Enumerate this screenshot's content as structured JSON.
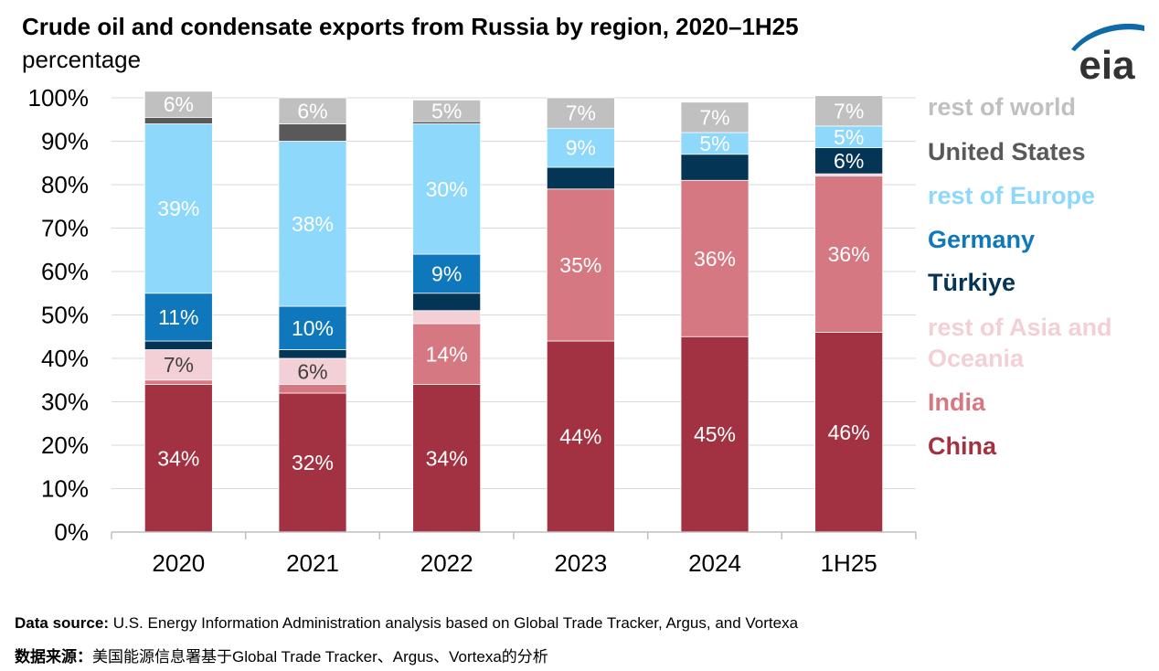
{
  "title": "Crude oil and condensate exports from Russia by region, 2020–1H25",
  "subtitle": "percentage",
  "logo_text": "eia",
  "source_en": {
    "label": "Data source:",
    "text": " U.S. Energy Information Administration analysis based on Global Trade Tracker, Argus, and Vortexa"
  },
  "source_zh": {
    "label": "数据来源：",
    "text": "美国能源信息署基于Global Trade Tracker、Argus、Vortexa的分析"
  },
  "colors": {
    "axis": "#bfbfbf",
    "grid": "#d9d9d9",
    "logo": "#0f6ba8"
  },
  "chart_data": {
    "type": "bar",
    "stacked": true,
    "categories": [
      "2020",
      "2021",
      "2022",
      "2023",
      "2024",
      "1H25"
    ],
    "ylim": [
      0,
      100
    ],
    "yticks": [
      0,
      10,
      20,
      30,
      40,
      50,
      60,
      70,
      80,
      90,
      100
    ],
    "ytick_labels": [
      "0%",
      "10%",
      "20%",
      "30%",
      "40%",
      "50%",
      "60%",
      "70%",
      "80%",
      "90%",
      "100%"
    ],
    "xlabel": "",
    "ylabel": "",
    "legend_placement": "right",
    "series": [
      {
        "name": "China",
        "legend_label": "China",
        "color": "#a23241",
        "label_color": "#ffffff",
        "values": [
          34,
          32,
          34,
          44,
          45,
          46
        ],
        "data_labels": [
          "34%",
          "32%",
          "34%",
          "44%",
          "45%",
          "46%"
        ]
      },
      {
        "name": "India",
        "legend_label": "India",
        "color": "#d67882",
        "label_color": "#ffffff",
        "values": [
          1,
          2,
          14,
          35,
          36,
          36
        ],
        "data_labels": [
          "",
          "",
          "14%",
          "35%",
          "36%",
          "36%"
        ]
      },
      {
        "name": "rest of Asia and Oceania",
        "legend_label": "rest of Asia and Oceania",
        "color": "#f2d0d6",
        "label_color": "#404040",
        "values": [
          7,
          6,
          3,
          0,
          0,
          0.5
        ],
        "data_labels": [
          "7%",
          "6%",
          "",
          "",
          "",
          ""
        ]
      },
      {
        "name": "Türkiye",
        "legend_label": "Türkiye",
        "color": "#053555",
        "label_color": "#ffffff",
        "values": [
          2,
          2,
          4,
          5,
          6,
          6
        ],
        "data_labels": [
          "",
          "",
          "",
          "",
          "",
          "6%"
        ]
      },
      {
        "name": "Germany",
        "legend_label": "Germany",
        "color": "#0f78bc",
        "label_color": "#ffffff",
        "values": [
          11,
          10,
          9,
          0,
          0,
          0
        ],
        "data_labels": [
          "11%",
          "10%",
          "9%",
          "",
          "",
          ""
        ]
      },
      {
        "name": "rest of Europe",
        "legend_label": "rest of Europe",
        "color": "#8dd8fb",
        "label_color": "#ffffff",
        "values": [
          39,
          38,
          30,
          9,
          5,
          5
        ],
        "data_labels": [
          "39%",
          "38%",
          "30%",
          "9%",
          "5%",
          "5%"
        ]
      },
      {
        "name": "United States",
        "legend_label": "United States",
        "color": "#595959",
        "label_color": "#ffffff",
        "values": [
          1.5,
          4,
          0.5,
          0,
          0,
          0
        ],
        "data_labels": [
          "",
          "",
          "",
          "",
          "",
          ""
        ]
      },
      {
        "name": "rest of world",
        "legend_label": "rest of world",
        "color": "#c0c0c0",
        "label_color": "#ffffff",
        "values": [
          6,
          6,
          5,
          7,
          7,
          7
        ],
        "data_labels": [
          "6%",
          "6%",
          "5%",
          "7%",
          "7%",
          "7%"
        ]
      }
    ],
    "legend_order": [
      "rest of world",
      "United States",
      "rest of Europe",
      "Germany",
      "Türkiye",
      "rest of Asia and Oceania",
      "India",
      "China"
    ]
  }
}
